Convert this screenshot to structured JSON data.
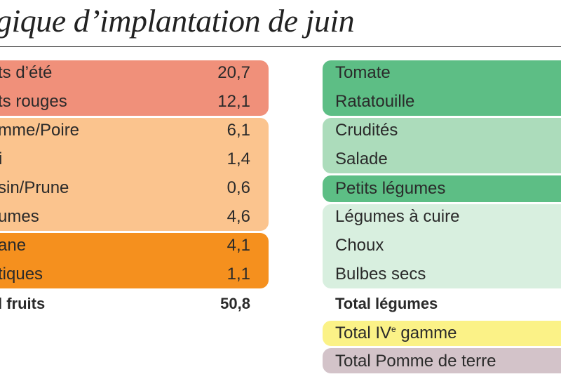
{
  "title": "gique d’implantation de juin",
  "fruits": {
    "rows": [
      {
        "label": "ts d’été",
        "value": "20,7"
      },
      {
        "label": "ts rouges",
        "value": "12,1"
      },
      {
        "label": "mme/Poire",
        "value": "6,1"
      },
      {
        "label": "i",
        "value": "1,4"
      },
      {
        "label": "sin/Prune",
        "value": "0,6"
      },
      {
        "label": "umes",
        "value": "4,6"
      },
      {
        "label": "ane",
        "value": "4,1"
      },
      {
        "label": "tiques",
        "value": "1,1"
      }
    ],
    "total_label": "l fruits",
    "total_value": "50,8"
  },
  "legumes": {
    "rows": [
      {
        "label": "Tomate"
      },
      {
        "label": "Ratatouille"
      },
      {
        "label": "Crudités"
      },
      {
        "label": "Salade"
      },
      {
        "label": "Petits légumes"
      },
      {
        "label": "Légumes à cuire"
      },
      {
        "label": "Choux"
      },
      {
        "label": "Bulbes secs"
      }
    ],
    "total_label": "Total légumes",
    "gamme_label_prefix": "Total IV",
    "gamme_label_sup": "e",
    "gamme_label_suffix": " gamme",
    "pdt_label": "Total Pomme de terre"
  },
  "colors": {
    "fruits_red": "#f0907a",
    "fruits_light_orange": "#fbc48e",
    "fruits_orange": "#f5901e",
    "legumes_dark_green": "#5dbe85",
    "legumes_mid_green": "#acdcbb",
    "legumes_light_green": "#d8efdf",
    "gamme_yellow": "#fbf287",
    "pdt_mauve": "#d3c3c9"
  }
}
